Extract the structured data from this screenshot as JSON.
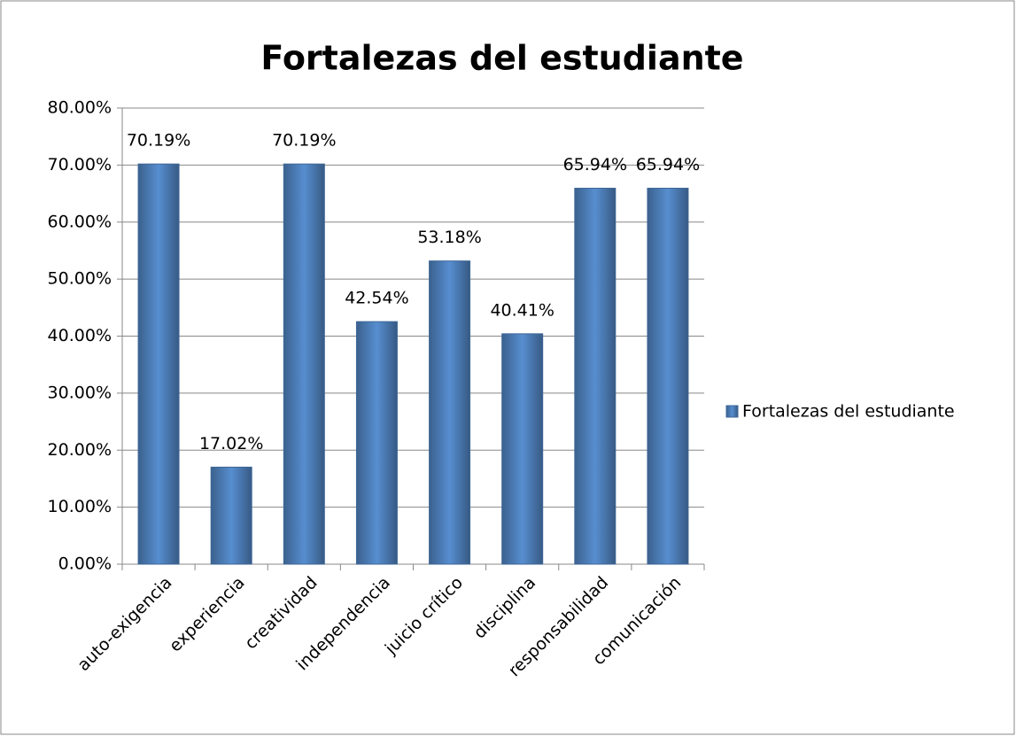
{
  "chart_data": {
    "type": "bar",
    "title": "Fortalezas del estudiante",
    "categories": [
      "auto-exigencia",
      "experiencia",
      "creatividad",
      "independencia",
      "juicio crítico",
      "disciplina",
      "responsabilidad",
      "comunicación"
    ],
    "series": [
      {
        "name": "Fortalezas del estudiante",
        "color": "#4f81bd",
        "values": [
          70.19,
          17.02,
          70.19,
          42.54,
          53.18,
          40.41,
          65.94,
          65.94
        ],
        "value_labels": [
          "70.19%",
          "17.02%",
          "70.19%",
          "42.54%",
          "53.18%",
          "40.41%",
          "65.94%",
          "65.94%"
        ]
      }
    ],
    "ylim": [
      0,
      80
    ],
    "yticks": [
      {
        "value": 0,
        "label": "0.00%"
      },
      {
        "value": 10,
        "label": "10.00%"
      },
      {
        "value": 20,
        "label": "20.00%"
      },
      {
        "value": 30,
        "label": "30.00%"
      },
      {
        "value": 40,
        "label": "40.00%"
      },
      {
        "value": 50,
        "label": "50.00%"
      },
      {
        "value": 60,
        "label": "60.00%"
      },
      {
        "value": 70,
        "label": "70.00%"
      },
      {
        "value": 80,
        "label": "80.00%"
      }
    ],
    "grid": true,
    "legend": "right"
  }
}
